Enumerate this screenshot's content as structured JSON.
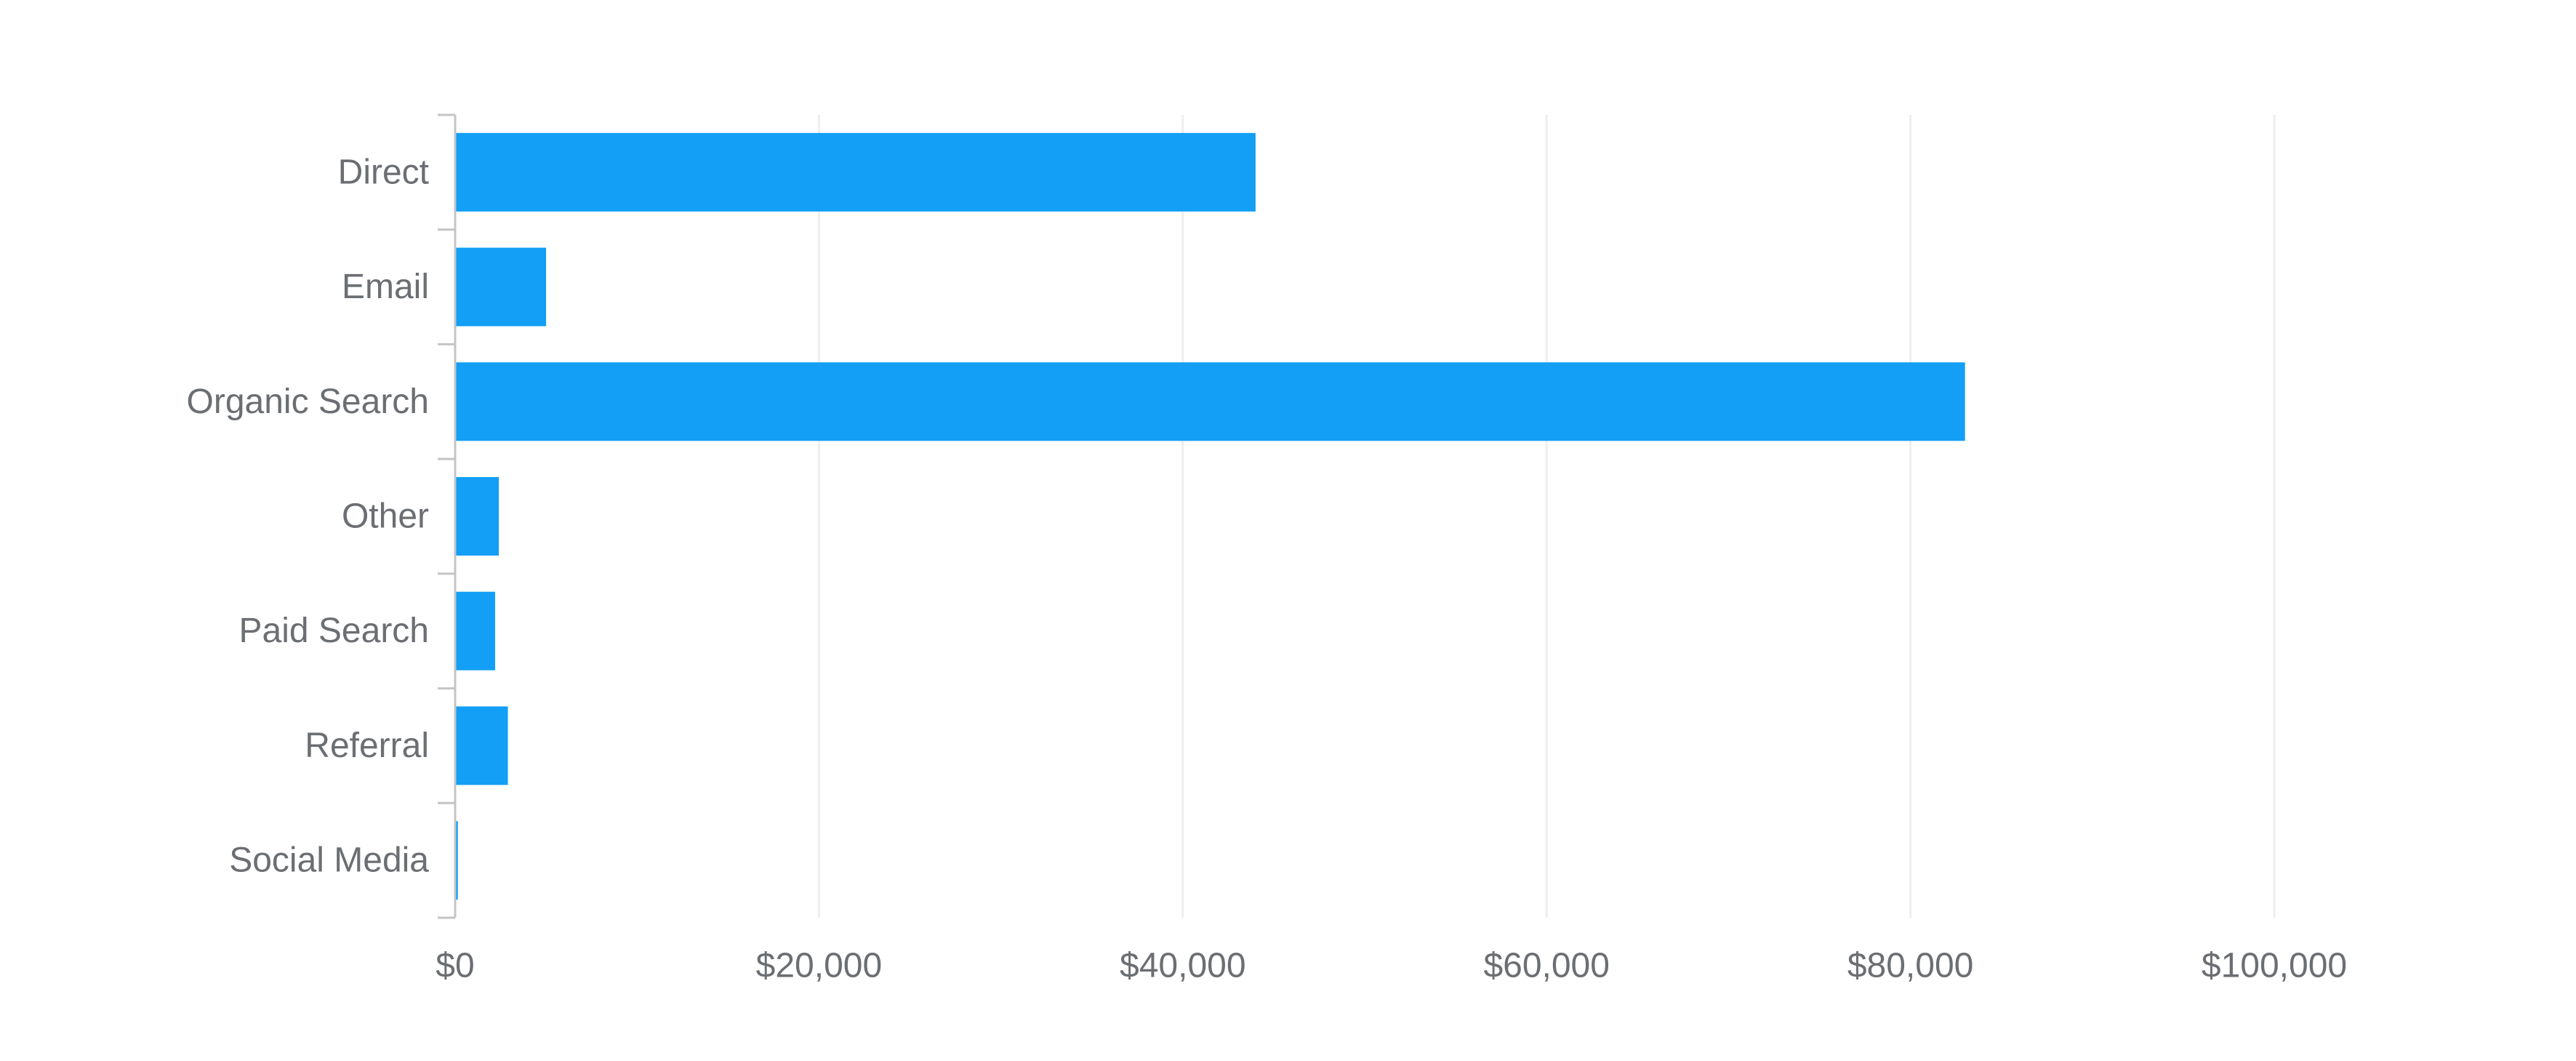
{
  "chart_data": {
    "type": "bar",
    "orientation": "horizontal",
    "categories": [
      "Direct",
      "Email",
      "Organic Search",
      "Other",
      "Paid Search",
      "Referral",
      "Social Media"
    ],
    "series": [
      {
        "values": [
          44000,
          5000,
          83000,
          2400,
          2200,
          2900,
          150
        ]
      }
    ],
    "x_ticks": [
      "$0",
      "$20,000",
      "$40,000",
      "$60,000",
      "$80,000",
      "$100,000"
    ],
    "x_tick_values": [
      0,
      20000,
      40000,
      60000,
      80000,
      100000
    ],
    "xlim": [
      0,
      100000
    ],
    "grid": true,
    "legend": "none",
    "title": "",
    "xlabel": "",
    "ylabel": "",
    "colors": {
      "bar": "#139ff6",
      "grid": "#eeeeee",
      "axis": "#c4c4c4",
      "tick_text": "#6b6e72"
    }
  }
}
